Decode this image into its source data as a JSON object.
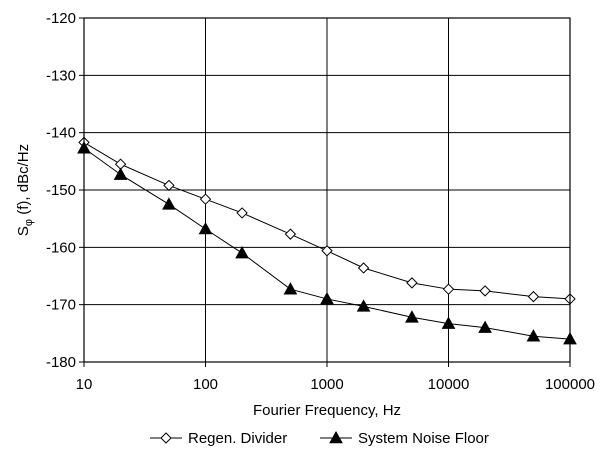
{
  "chart_data": {
    "type": "line",
    "title": "",
    "xlabel": "Fourier Frequency, Hz",
    "ylabel_main": "S",
    "ylabel_sub": "φ",
    "ylabel_rest": " (f), dBc/Hz",
    "xscale": "log",
    "xlim": [
      10,
      100000
    ],
    "ylim": [
      -180,
      -120
    ],
    "grid": true,
    "legend_position": "bottom",
    "x_ticks": [
      10,
      100,
      1000,
      10000,
      100000
    ],
    "x_tick_labels": [
      "10",
      "100",
      "1000",
      "10000",
      "100000"
    ],
    "y_ticks": [
      -120,
      -130,
      -140,
      -150,
      -160,
      -170,
      -180
    ],
    "y_tick_labels": [
      "-120",
      "-130",
      "-140",
      "-150",
      "-160",
      "-170",
      "-180"
    ],
    "series": [
      {
        "name": "Regen. Divider",
        "marker": "open-diamond",
        "color": "#000000",
        "x": [
          10,
          20,
          50,
          100,
          200,
          500,
          1000,
          2000,
          5000,
          10000,
          20000,
          50000,
          100000
        ],
        "y": [
          -141.7,
          -145.5,
          -149.2,
          -151.6,
          -154.0,
          -157.7,
          -160.6,
          -163.6,
          -166.2,
          -167.3,
          -167.6,
          -168.6,
          -169.0
        ]
      },
      {
        "name": "System Noise Floor",
        "marker": "filled-triangle",
        "color": "#000000",
        "x": [
          10,
          20,
          50,
          100,
          200,
          500,
          1000,
          2000,
          5000,
          10000,
          20000,
          50000,
          100000
        ],
        "y": [
          -142.7,
          -147.3,
          -152.5,
          -156.8,
          -161.0,
          -167.3,
          -169.0,
          -170.3,
          -172.2,
          -173.3,
          -174.0,
          -175.5,
          -176.0
        ]
      }
    ]
  }
}
